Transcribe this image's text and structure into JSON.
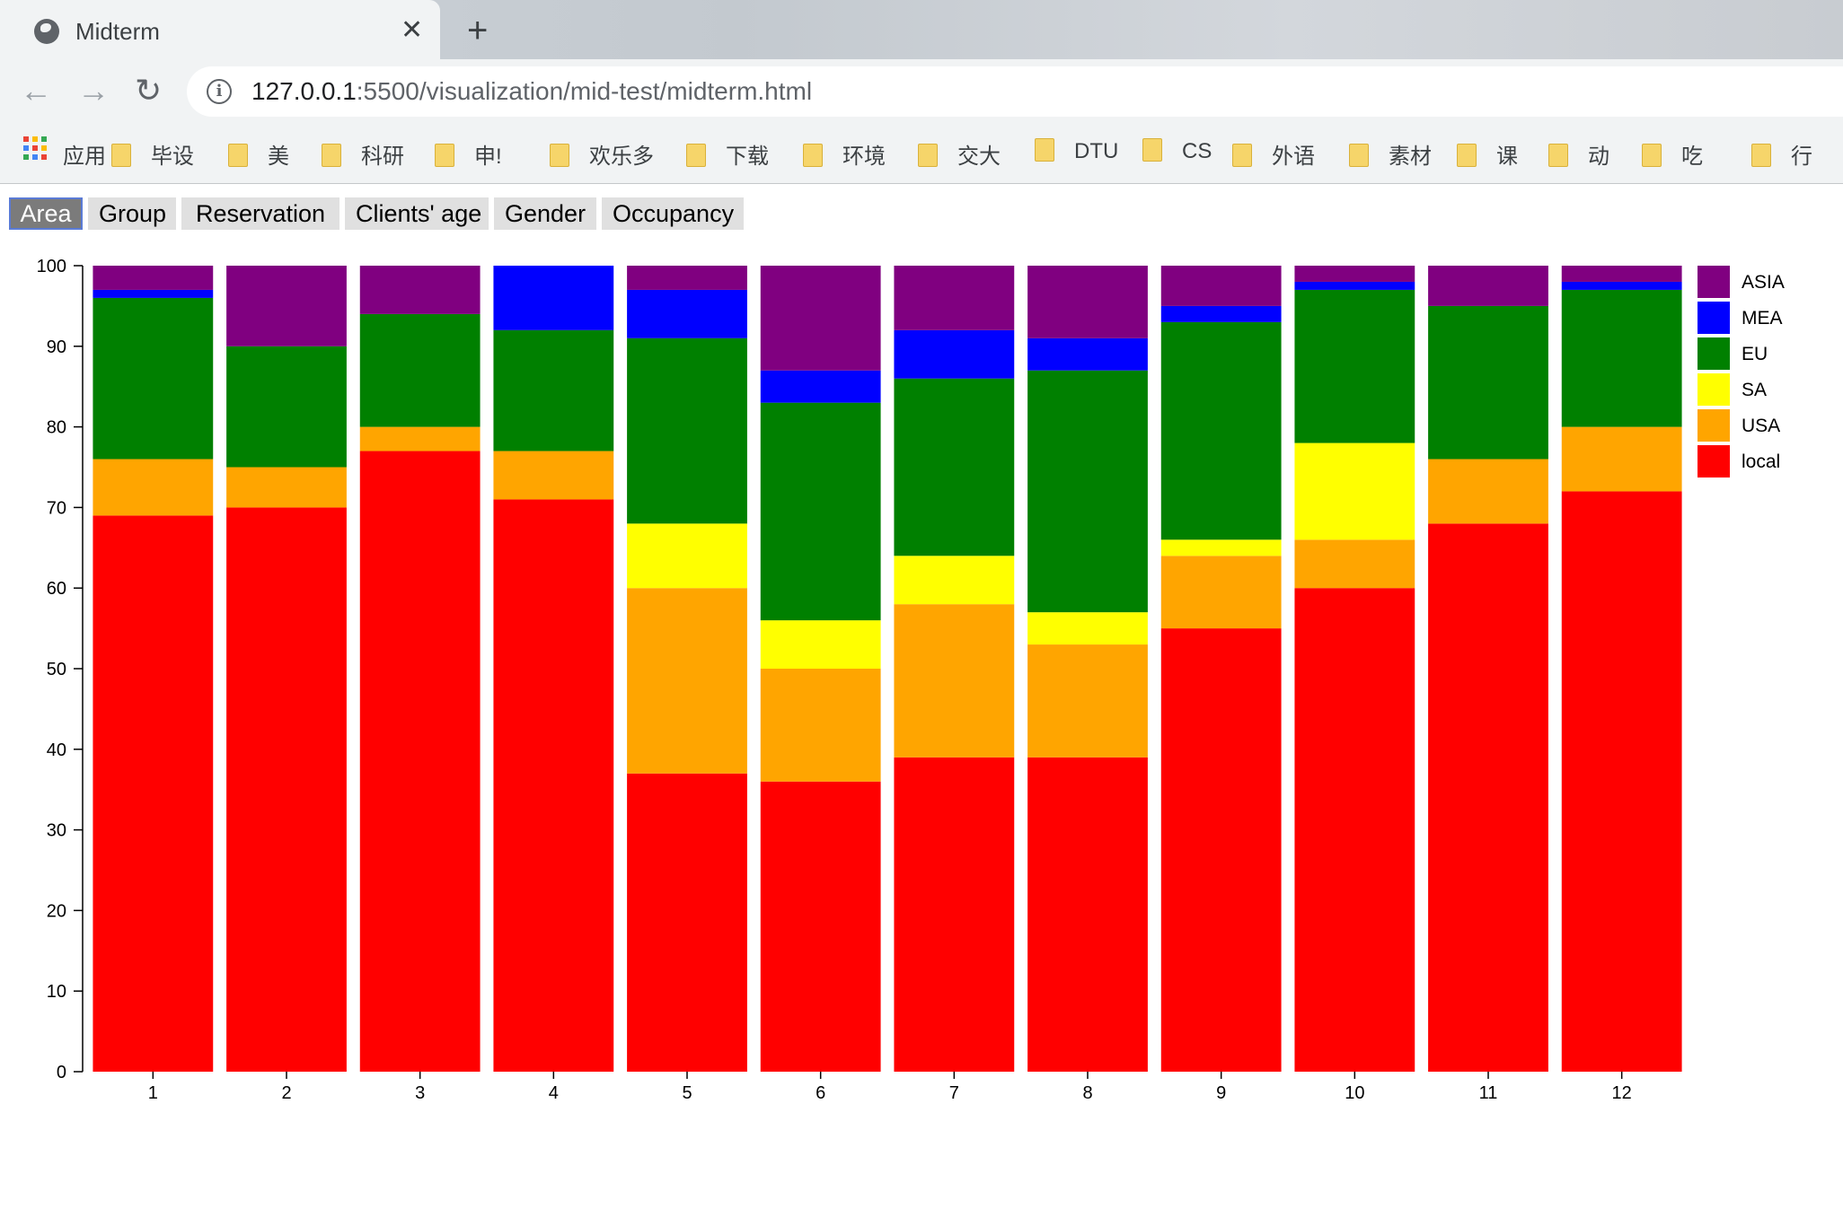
{
  "browser": {
    "tab_title": "Midterm",
    "close_glyph": "✕",
    "new_tab_glyph": "+",
    "back_glyph": "←",
    "forward_glyph": "→",
    "reload_glyph": "↻",
    "url_host": "127.0.0.1",
    "url_rest": ":5500/visualization/mid-test/midterm.html",
    "bookmarks": [
      "应用",
      "毕设",
      "美",
      "科研",
      "申!",
      "欢乐多",
      "下载",
      "环境",
      "交大",
      "DTU",
      "CS",
      "外语",
      "素材",
      "课",
      "动",
      "吃",
      "行"
    ]
  },
  "buttons": [
    {
      "label": "Area",
      "active": true
    },
    {
      "label": "Group",
      "active": false
    },
    {
      "label": "Reservation",
      "active": false
    },
    {
      "label": "Clients' age",
      "active": false
    },
    {
      "label": "Gender",
      "active": false
    },
    {
      "label": "Occupancy",
      "active": false
    }
  ],
  "chart_data": {
    "type": "bar",
    "stacked": true,
    "title": "",
    "xlabel": "",
    "ylabel": "",
    "ylim": [
      0,
      100
    ],
    "yticks": [
      0,
      10,
      20,
      30,
      40,
      50,
      60,
      70,
      80,
      90,
      100
    ],
    "categories": [
      "1",
      "2",
      "3",
      "4",
      "5",
      "6",
      "7",
      "8",
      "9",
      "10",
      "11",
      "12"
    ],
    "legend_position": "right",
    "series": [
      {
        "name": "local",
        "color": "#ff0000",
        "values": [
          69,
          70,
          77,
          71,
          37,
          36,
          39,
          39,
          55,
          60,
          68,
          72
        ]
      },
      {
        "name": "USA",
        "color": "#ffa500",
        "values": [
          7,
          5,
          3,
          6,
          23,
          14,
          19,
          14,
          9,
          6,
          8,
          8
        ]
      },
      {
        "name": "SA",
        "color": "#ffff00",
        "values": [
          0,
          0,
          0,
          0,
          8,
          6,
          6,
          4,
          2,
          12,
          0,
          0
        ]
      },
      {
        "name": "EU",
        "color": "#008000",
        "values": [
          20,
          15,
          14,
          15,
          23,
          27,
          22,
          30,
          27,
          19,
          19,
          17
        ]
      },
      {
        "name": "MEA",
        "color": "#0000ff",
        "values": [
          1,
          0,
          0,
          8,
          6,
          4,
          6,
          4,
          2,
          1,
          0,
          1
        ]
      },
      {
        "name": "ASIA",
        "color": "#800080",
        "values": [
          3,
          10,
          6,
          0,
          3,
          13,
          8,
          9,
          5,
          2,
          5,
          2
        ]
      }
    ]
  }
}
